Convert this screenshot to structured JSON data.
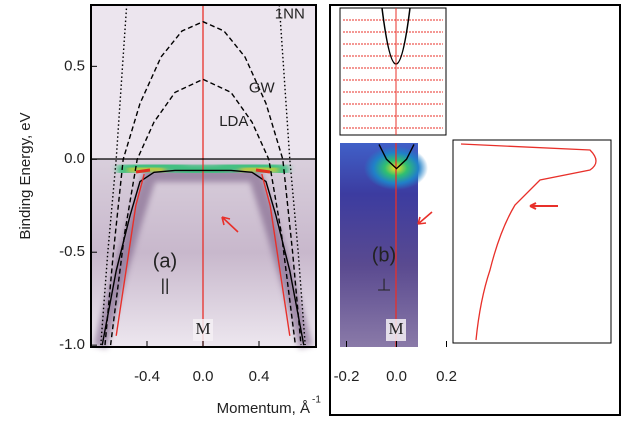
{
  "chart_data": [
    {
      "type": "line",
      "ylabel": "Binding Energy, eV",
      "xlabel": "Momentum, Å",
      "xlabel_superscript": "-1",
      "xlim": [
        -0.8,
        0.8
      ],
      "ylim": [
        -1.01,
        0.83
      ],
      "xticks": [
        -0.4,
        {
          "value": 0,
          "label": "0.0"
        },
        0.4
      ],
      "yticks": [
        {
          "value": -1,
          "label": "-1.0"
        },
        -0.5,
        {
          "value": 0,
          "label": "0.0"
        },
        0.5
      ],
      "series": [
        {
          "name": "1NN",
          "color": "#000000",
          "dash": "dotted",
          "x": [
            -0.73,
            -0.68,
            -0.62,
            -0.575,
            -0.545,
            0,
            0.545,
            0.575,
            0.62,
            0.68,
            0.73
          ],
          "values": [
            -1,
            -0.5,
            0,
            0.5,
            0.83,
            null,
            0.83,
            0.5,
            0,
            -0.5,
            -1
          ]
        },
        {
          "name": "GW",
          "color": "#000000",
          "dash": "dashed",
          "x": [
            -0.7,
            -0.64,
            -0.57,
            -0.45,
            -0.3,
            -0.15,
            0,
            0.15,
            0.3,
            0.45,
            0.57,
            0.64,
            0.7
          ],
          "values": [
            -1,
            -0.5,
            0,
            0.3,
            0.55,
            0.69,
            0.74,
            0.69,
            0.55,
            0.3,
            0,
            -0.5,
            -1
          ]
        },
        {
          "name": "LDA",
          "color": "#000000",
          "dash": "dashed",
          "x": [
            -0.66,
            -0.56,
            -0.47,
            -0.35,
            -0.2,
            0,
            0.2,
            0.35,
            0.47,
            0.56,
            0.66
          ],
          "values": [
            -1,
            -0.4,
            0,
            0.2,
            0.36,
            0.43,
            0.36,
            0.2,
            0,
            -0.4,
            -1
          ]
        },
        {
          "color": "#000000",
          "dash": "solid",
          "x": [
            -0.72,
            -0.62,
            -0.52,
            -0.45,
            -0.35,
            -0.2,
            0,
            0.2,
            0.35,
            0.45,
            0.52,
            0.62,
            0.72
          ],
          "values": [
            -1,
            -0.6,
            -0.3,
            -0.12,
            -0.07,
            -0.06,
            -0.06,
            -0.06,
            -0.07,
            -0.12,
            -0.3,
            -0.6,
            -1
          ]
        },
        {
          "color": "#e8302a",
          "dash": "solid",
          "x": [
            -0.62,
            -0.55,
            -0.48,
            -0.42,
            0,
            0.42,
            0.48,
            0.55,
            0.62
          ],
          "values": [
            -0.95,
            -0.6,
            -0.25,
            -0.08,
            null,
            -0.08,
            -0.25,
            -0.6,
            -0.95
          ]
        }
      ],
      "annotations": [
        "(a)",
        "||",
        "M"
      ]
    },
    {
      "type": "line",
      "xlim": [
        -0.23,
        0.23
      ],
      "ylim": [
        -1.01,
        0.83
      ],
      "xticks": [
        -0.2,
        {
          "value": 0,
          "label": "0.0"
        },
        0.2
      ],
      "series": [
        {
          "color": "#000000",
          "dash": "solid",
          "x": [
            -0.07,
            -0.04,
            0,
            0.04,
            0.07
          ],
          "values": [
            0.08,
            0,
            -0.05,
            0,
            0.08
          ]
        }
      ],
      "annotations": [
        "(b)",
        "⊥",
        "M"
      ]
    }
  ]
}
